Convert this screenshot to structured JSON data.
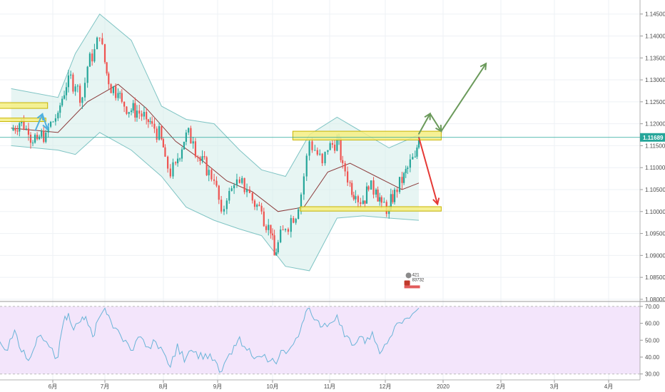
{
  "chart_data": [
    {
      "type": "candlestick",
      "title": "",
      "x_ticks": [
        "6月",
        "7月",
        "8月",
        "9月",
        "10月",
        "11月",
        "12月",
        "2020",
        "2月",
        "3月",
        "4月"
      ],
      "y_ticks": [
        "1.14500",
        "1.14000",
        "1.13500",
        "1.13000",
        "1.12500",
        "1.12000",
        "1.11500",
        "1.11000",
        "1.10500",
        "1.10000",
        "1.09500",
        "1.09000",
        "1.08500",
        "1.08000"
      ],
      "ylim": [
        1.0795,
        1.1482
      ],
      "last_price_label": "1.11689",
      "last_price": 1.11689,
      "grid": true,
      "colors": {
        "up": "#26a69a",
        "down": "#ef5350",
        "bollinger_band": "#7fc4c4",
        "bollinger_fill": "#d3ece9",
        "basis": "#8b3a3a",
        "price_line": "#26a69a",
        "zone": "#f4ee82",
        "zone_border": "#c8b400",
        "bull_arrow": "#6b9a5b",
        "bear_arrow": "#e53935"
      },
      "close_points": [
        [
          "05-08",
          1.1185
        ],
        [
          "05-14",
          1.121
        ],
        [
          "05-18",
          1.1175
        ],
        [
          "05-23",
          1.1165
        ],
        [
          "05-28",
          1.118
        ],
        [
          "06-04",
          1.1225
        ],
        [
          "06-10",
          1.131
        ],
        [
          "06-14",
          1.1285
        ],
        [
          "06-18",
          1.126
        ],
        [
          "06-21",
          1.133
        ],
        [
          "06-25",
          1.137
        ],
        [
          "06-28",
          1.1395
        ],
        [
          "07-01",
          1.134
        ],
        [
          "07-03",
          1.129
        ],
        [
          "07-08",
          1.127
        ],
        [
          "07-10",
          1.125
        ],
        [
          "07-15",
          1.123
        ],
        [
          "07-18",
          1.123
        ],
        [
          "07-23",
          1.121
        ],
        [
          "07-26",
          1.12
        ],
        [
          "07-31",
          1.1165
        ],
        [
          "08-02",
          1.1125
        ],
        [
          "08-05",
          1.108
        ],
        [
          "08-08",
          1.111
        ],
        [
          "08-14",
          1.118
        ],
        [
          "08-18",
          1.116
        ],
        [
          "08-22",
          1.1115
        ],
        [
          "08-27",
          1.1095
        ],
        [
          "08-30",
          1.107
        ],
        [
          "09-03",
          1.1
        ],
        [
          "09-06",
          1.1025
        ],
        [
          "09-10",
          1.106
        ],
        [
          "09-13",
          1.1065
        ],
        [
          "09-17",
          1.105
        ],
        [
          "09-20",
          1.1025
        ],
        [
          "09-25",
          1.1
        ],
        [
          "09-30",
          1.095
        ],
        [
          "10-02",
          1.09
        ],
        [
          "10-04",
          1.093
        ],
        [
          "10-08",
          1.096
        ],
        [
          "10-11",
          1.0985
        ],
        [
          "10-15",
          1.1005
        ],
        [
          "10-18",
          1.108
        ],
        [
          "10-21",
          1.116
        ],
        [
          "10-24",
          1.114
        ],
        [
          "10-28",
          1.111
        ],
        [
          "10-31",
          1.114
        ],
        [
          "11-05",
          1.1165
        ],
        [
          "11-08",
          1.111
        ],
        [
          "11-12",
          1.1065
        ],
        [
          "11-15",
          1.1035
        ],
        [
          "11-19",
          1.1025
        ],
        [
          "11-22",
          1.105
        ],
        [
          "11-26",
          1.105
        ],
        [
          "11-29",
          1.102
        ],
        [
          "12-03",
          1.1005
        ],
        [
          "12-06",
          1.105
        ],
        [
          "12-10",
          1.1065
        ],
        [
          "12-13",
          1.11
        ],
        [
          "12-17",
          1.1125
        ],
        [
          "12-19",
          1.1169
        ]
      ],
      "upper_band": [
        [
          "05-08",
          1.128
        ],
        [
          "06-04",
          1.126
        ],
        [
          "06-14",
          1.136
        ],
        [
          "06-28",
          1.145
        ],
        [
          "07-15",
          1.139
        ],
        [
          "07-31",
          1.124
        ],
        [
          "08-14",
          1.121
        ],
        [
          "08-30",
          1.12
        ],
        [
          "09-13",
          1.114
        ],
        [
          "09-25",
          1.1095
        ],
        [
          "10-08",
          1.108
        ],
        [
          "10-21",
          1.1175
        ],
        [
          "11-05",
          1.1215
        ],
        [
          "11-19",
          1.118
        ],
        [
          "12-03",
          1.1145
        ],
        [
          "12-19",
          1.1175
        ]
      ],
      "lower_band": [
        [
          "05-08",
          1.115
        ],
        [
          "06-04",
          1.114
        ],
        [
          "06-14",
          1.113
        ],
        [
          "06-28",
          1.118
        ],
        [
          "07-15",
          1.114
        ],
        [
          "07-31",
          1.108
        ],
        [
          "08-14",
          1.101
        ],
        [
          "08-30",
          1.098
        ],
        [
          "09-13",
          1.096
        ],
        [
          "09-25",
          1.0945
        ],
        [
          "10-08",
          1.0875
        ],
        [
          "10-21",
          1.0865
        ],
        [
          "11-05",
          1.0985
        ],
        [
          "11-19",
          1.099
        ],
        [
          "12-03",
          1.0985
        ],
        [
          "12-19",
          1.098
        ]
      ],
      "basis": [
        [
          "05-08",
          1.119
        ],
        [
          "06-04",
          1.118
        ],
        [
          "06-21",
          1.125
        ],
        [
          "07-08",
          1.129
        ],
        [
          "07-23",
          1.1235
        ],
        [
          "08-08",
          1.116
        ],
        [
          "08-22",
          1.112
        ],
        [
          "09-06",
          1.107
        ],
        [
          "09-20",
          1.1045
        ],
        [
          "10-04",
          1.1
        ],
        [
          "10-18",
          1.101
        ],
        [
          "10-31",
          1.109
        ],
        [
          "11-12",
          1.111
        ],
        [
          "11-26",
          1.108
        ],
        [
          "12-10",
          1.105
        ],
        [
          "12-19",
          1.1065
        ]
      ],
      "zones": [
        {
          "date_from": "05-01",
          "date_to": "05-29",
          "low": 1.1235,
          "high": 1.1248
        },
        {
          "date_from": "05-01",
          "date_to": "05-28",
          "low": 1.1205,
          "high": 1.1213
        },
        {
          "date_from": "10-12",
          "date_to": "12-31",
          "low": 1.1163,
          "high": 1.1183
        },
        {
          "date_from": "10-16",
          "date_to": "12-31",
          "low": 1.1001,
          "high": 1.1011
        }
      ],
      "projections": [
        {
          "kind": "bull",
          "points": [
            [
              "12-19",
              1.1177
            ],
            [
              "12-25",
              1.1223
            ],
            [
              "12-31",
              1.1183
            ],
            [
              "01-24",
              1.1337
            ]
          ]
        },
        {
          "kind": "bear",
          "points": [
            [
              "12-19",
              1.1169
            ],
            [
              "12-29",
              1.1017
            ]
          ]
        },
        {
          "kind": "early",
          "points": [
            [
              "05-22",
              1.1185
            ],
            [
              "05-26",
              1.1222
            ],
            [
              "05-29",
              1.1187
            ]
          ]
        }
      ],
      "badge_lines": [
        "421",
        "83732"
      ]
    },
    {
      "type": "line",
      "title": "",
      "y_ticks": [
        "70.00",
        "60.00",
        "50.00",
        "40.00",
        "30.00"
      ],
      "ylim": [
        26.5,
        72.5
      ],
      "band": [
        30,
        70
      ],
      "colors": {
        "line": "#6ab4d8",
        "band_fill": "#f3e5fb",
        "band_edge": "#bbbbbb"
      },
      "points": [
        [
          "05-01",
          50
        ],
        [
          "05-06",
          44
        ],
        [
          "05-10",
          56
        ],
        [
          "05-14",
          43
        ],
        [
          "05-18",
          38
        ],
        [
          "05-22",
          47
        ],
        [
          "05-25",
          53
        ],
        [
          "05-30",
          46
        ],
        [
          "06-04",
          40
        ],
        [
          "06-07",
          60
        ],
        [
          "06-10",
          66
        ],
        [
          "06-13",
          56
        ],
        [
          "06-17",
          61
        ],
        [
          "06-20",
          64
        ],
        [
          "06-24",
          52
        ],
        [
          "06-27",
          62
        ],
        [
          "07-01",
          69
        ],
        [
          "07-04",
          62
        ],
        [
          "07-08",
          56
        ],
        [
          "07-12",
          50
        ],
        [
          "07-16",
          44
        ],
        [
          "07-20",
          52
        ],
        [
          "07-24",
          46
        ],
        [
          "07-28",
          49
        ],
        [
          "08-01",
          43
        ],
        [
          "08-05",
          34
        ],
        [
          "08-09",
          48
        ],
        [
          "08-13",
          37
        ],
        [
          "08-17",
          44
        ],
        [
          "08-21",
          39
        ],
        [
          "08-25",
          42
        ],
        [
          "08-29",
          38
        ],
        [
          "09-02",
          31
        ],
        [
          "09-06",
          39
        ],
        [
          "09-10",
          47
        ],
        [
          "09-13",
          52
        ],
        [
          "09-17",
          44
        ],
        [
          "09-21",
          39
        ],
        [
          "09-25",
          40
        ],
        [
          "09-30",
          38
        ],
        [
          "10-03",
          36
        ],
        [
          "10-07",
          44
        ],
        [
          "10-11",
          46
        ],
        [
          "10-15",
          52
        ],
        [
          "10-18",
          62
        ],
        [
          "10-21",
          69
        ],
        [
          "10-25",
          62
        ],
        [
          "10-28",
          58
        ],
        [
          "11-01",
          60
        ],
        [
          "11-05",
          65
        ],
        [
          "11-09",
          52
        ],
        [
          "11-13",
          47
        ],
        [
          "11-17",
          52
        ],
        [
          "11-20",
          48
        ],
        [
          "11-24",
          55
        ],
        [
          "11-28",
          42
        ],
        [
          "12-02",
          48
        ],
        [
          "12-06",
          58
        ],
        [
          "12-10",
          60
        ],
        [
          "12-14",
          63
        ],
        [
          "12-19",
          69
        ]
      ]
    }
  ]
}
